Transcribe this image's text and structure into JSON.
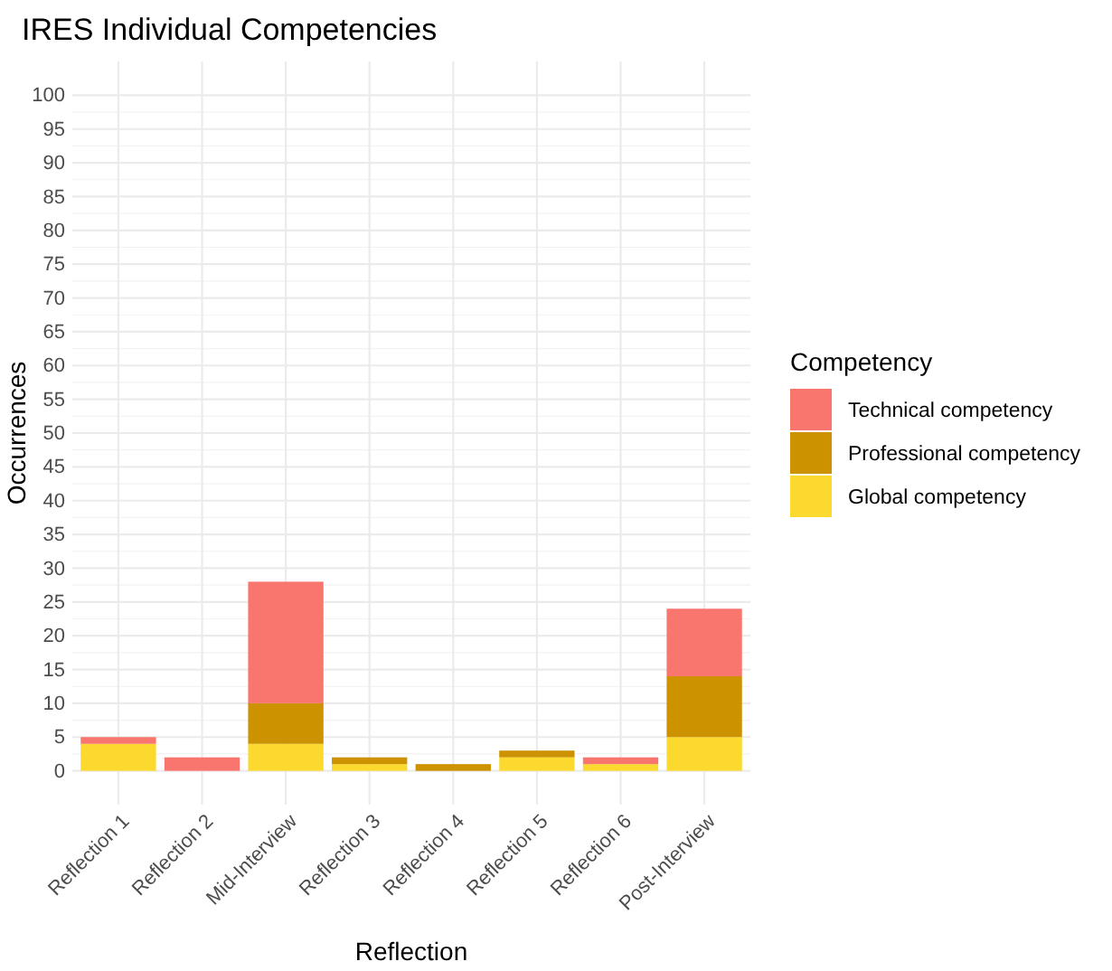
{
  "chart_data": {
    "type": "bar",
    "title": "IRES Individual Competencies",
    "xlabel": "Reflection",
    "ylabel": "Occurrences",
    "legend_title": "Competency",
    "categories": [
      "Reflection 1",
      "Reflection 2",
      "Mid-Interview",
      "Reflection 3",
      "Reflection 4",
      "Reflection 5",
      "Reflection 6",
      "Post-Interview"
    ],
    "stacked": true,
    "series": [
      {
        "name": "Global competency",
        "color": "#fbd92f",
        "values": [
          4,
          0,
          4,
          1,
          0,
          2,
          1,
          5
        ]
      },
      {
        "name": "Professional competency",
        "color": "#cc9200",
        "values": [
          0,
          0,
          6,
          1,
          1,
          1,
          0,
          9
        ]
      },
      {
        "name": "Technical competency",
        "color": "#f8766d",
        "values": [
          1,
          2,
          18,
          0,
          0,
          0,
          1,
          10
        ]
      }
    ],
    "ylim": [
      -5,
      105
    ],
    "yticks": [
      0,
      5,
      10,
      15,
      20,
      25,
      30,
      35,
      40,
      45,
      50,
      55,
      60,
      65,
      70,
      75,
      80,
      85,
      90,
      95,
      100
    ],
    "grid": true,
    "legend": "right"
  }
}
